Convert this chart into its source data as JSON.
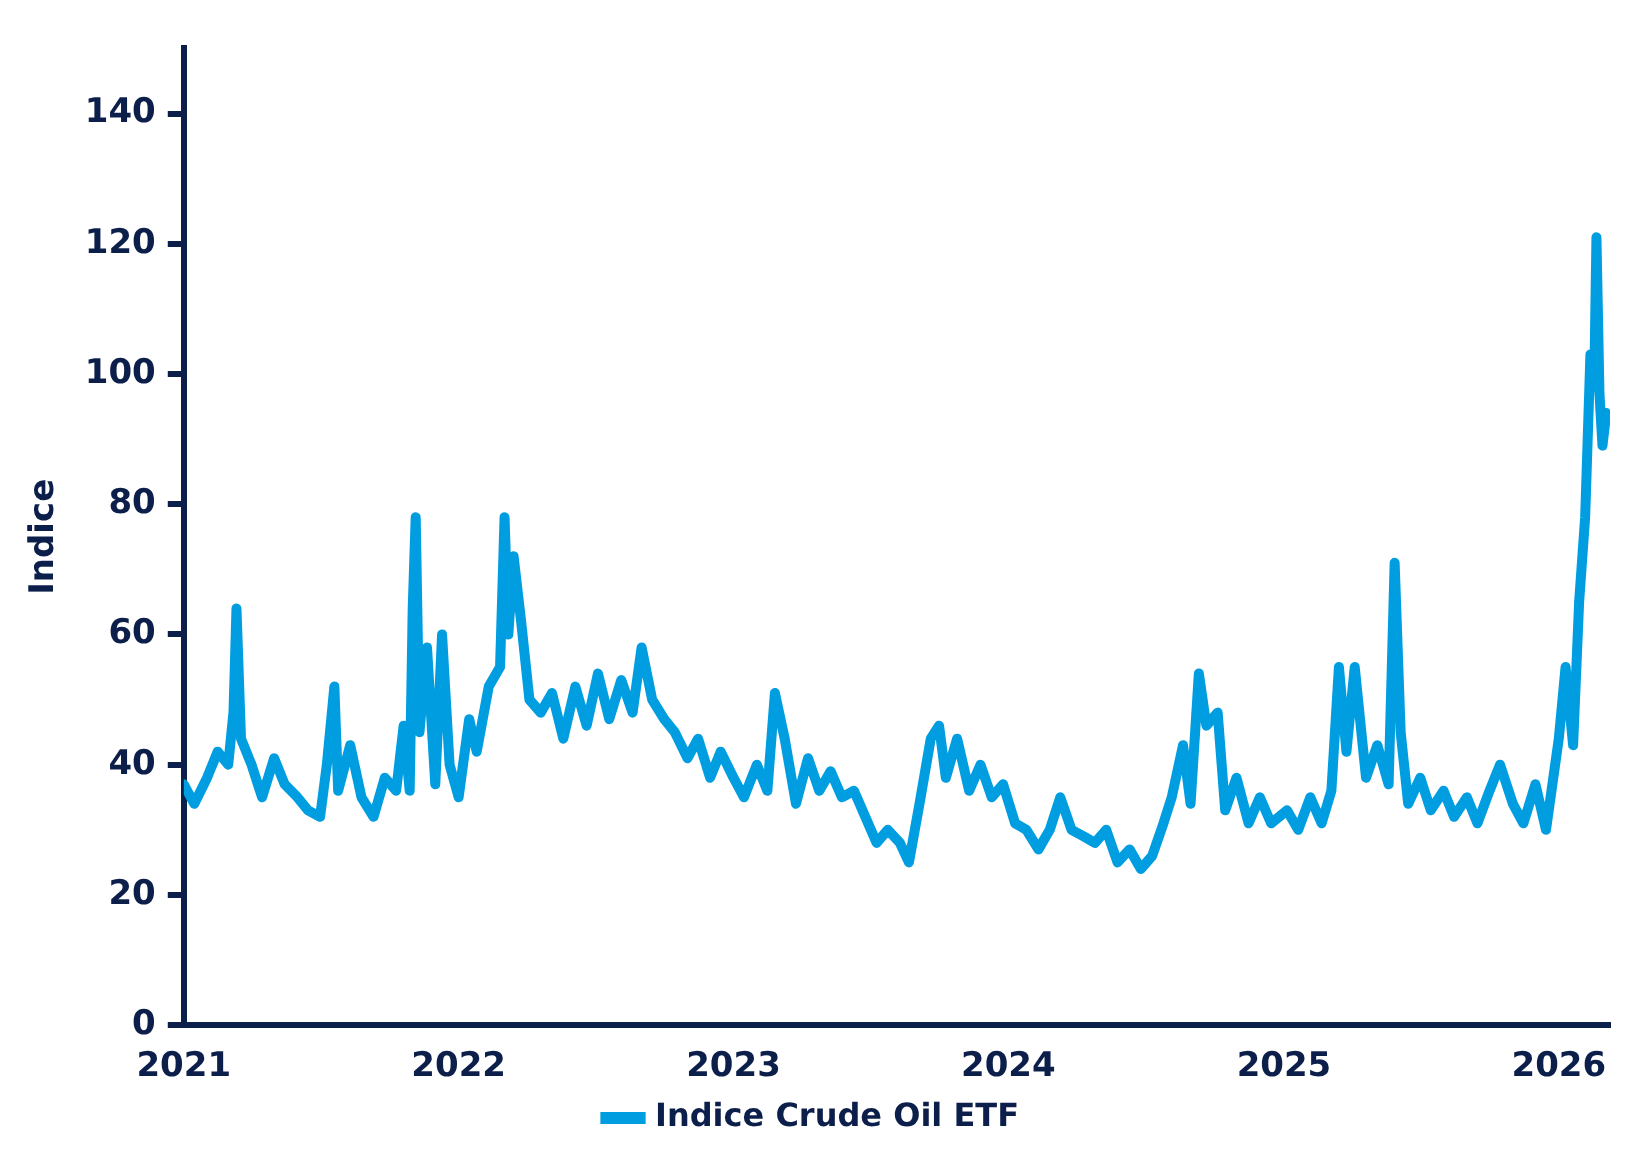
{
  "chart_data": {
    "type": "line",
    "ylabel": "Indice",
    "x": [
      "2021-01-01",
      "2021-01-15",
      "2021-02-01",
      "2021-02-15",
      "2021-03-01",
      "2021-03-08",
      "2021-03-12",
      "2021-03-18",
      "2021-04-01",
      "2021-04-15",
      "2021-05-01",
      "2021-05-15",
      "2021-06-01",
      "2021-06-15",
      "2021-07-01",
      "2021-07-10",
      "2021-07-20",
      "2021-07-25",
      "2021-08-10",
      "2021-08-25",
      "2021-09-10",
      "2021-09-25",
      "2021-10-10",
      "2021-10-20",
      "2021-10-28",
      "2021-11-01",
      "2021-11-05",
      "2021-11-10",
      "2021-11-20",
      "2021-12-01",
      "2021-12-10",
      "2021-12-20",
      "2022-01-01",
      "2022-01-15",
      "2022-01-25",
      "2022-02-10",
      "2022-02-25",
      "2022-03-03",
      "2022-03-08",
      "2022-03-15",
      "2022-03-25",
      "2022-04-05",
      "2022-04-20",
      "2022-05-05",
      "2022-05-20",
      "2022-06-05",
      "2022-06-20",
      "2022-07-05",
      "2022-07-20",
      "2022-08-05",
      "2022-08-20",
      "2022-09-01",
      "2022-09-15",
      "2022-10-01",
      "2022-10-15",
      "2022-11-01",
      "2022-11-15",
      "2022-12-01",
      "2022-12-15",
      "2023-01-01",
      "2023-01-15",
      "2023-02-01",
      "2023-02-15",
      "2023-02-25",
      "2023-03-10",
      "2023-03-25",
      "2023-04-10",
      "2023-04-25",
      "2023-05-10",
      "2023-05-25",
      "2023-06-10",
      "2023-06-25",
      "2023-07-10",
      "2023-07-25",
      "2023-08-10",
      "2023-08-22",
      "2023-09-05",
      "2023-09-20",
      "2023-10-01",
      "2023-10-10",
      "2023-10-25",
      "2023-11-10",
      "2023-11-25",
      "2023-12-10",
      "2023-12-25",
      "2024-01-10",
      "2024-01-25",
      "2024-02-10",
      "2024-02-25",
      "2024-03-10",
      "2024-03-25",
      "2024-04-10",
      "2024-04-25",
      "2024-05-10",
      "2024-05-25",
      "2024-06-10",
      "2024-06-25",
      "2024-07-10",
      "2024-07-25",
      "2024-08-05",
      "2024-08-20",
      "2024-08-30",
      "2024-09-10",
      "2024-09-20",
      "2024-10-05",
      "2024-10-15",
      "2024-10-30",
      "2024-11-15",
      "2024-11-30",
      "2024-12-15",
      "2025-01-05",
      "2025-01-20",
      "2025-02-05",
      "2025-02-20",
      "2025-03-05",
      "2025-03-15",
      "2025-03-25",
      "2025-04-05",
      "2025-04-20",
      "2025-05-05",
      "2025-05-20",
      "2025-05-28",
      "2025-06-05",
      "2025-06-15",
      "2025-07-01",
      "2025-07-15",
      "2025-08-01",
      "2025-08-15",
      "2025-09-01",
      "2025-09-15",
      "2025-10-01",
      "2025-10-15",
      "2025-11-01",
      "2025-11-15",
      "2025-12-01",
      "2025-12-15",
      "2026-01-01",
      "2026-01-10",
      "2026-01-20",
      "2026-01-28",
      "2026-02-05",
      "2026-02-12",
      "2026-02-17",
      "2026-02-20",
      "2026-02-24",
      "2026-02-28",
      "2026-03-05"
    ],
    "series": [
      {
        "name": "Indice Crude Oil ETF",
        "color": "#009ee0",
        "values": [
          37,
          34,
          38,
          42,
          40,
          48,
          64,
          44,
          40,
          35,
          41,
          37,
          35,
          33,
          32,
          40,
          52,
          36,
          43,
          35,
          32,
          38,
          36,
          46,
          36,
          64,
          78,
          45,
          58,
          37,
          60,
          40,
          35,
          47,
          42,
          52,
          55,
          78,
          60,
          72,
          62,
          50,
          48,
          51,
          44,
          52,
          46,
          54,
          47,
          53,
          48,
          58,
          50,
          47,
          45,
          41,
          44,
          38,
          42,
          38,
          35,
          40,
          36,
          51,
          44,
          34,
          41,
          36,
          39,
          35,
          36,
          32,
          28,
          30,
          28,
          25,
          34,
          44,
          46,
          38,
          44,
          36,
          40,
          35,
          37,
          31,
          30,
          27,
          30,
          35,
          30,
          29,
          28,
          30,
          25,
          27,
          24,
          26,
          31,
          35,
          43,
          34,
          54,
          46,
          48,
          33,
          38,
          31,
          35,
          31,
          33,
          30,
          35,
          31,
          36,
          55,
          42,
          55,
          38,
          43,
          37,
          71,
          45,
          34,
          38,
          33,
          36,
          32,
          35,
          31,
          36,
          40,
          34,
          31,
          37,
          30,
          44,
          55,
          43,
          65,
          78,
          103,
          98,
          121,
          97,
          89,
          94
        ]
      }
    ],
    "xlim": [
      "2021-01-01",
      "2026-03-10"
    ],
    "xticks": [
      "2021",
      "2022",
      "2023",
      "2024",
      "2025",
      "2026"
    ],
    "ylim": [
      0,
      150
    ],
    "yticks": [
      0,
      20,
      40,
      60,
      80,
      100,
      120,
      140
    ],
    "grid": false,
    "legend": "bottom",
    "marker": "none",
    "line_style": "solid"
  }
}
